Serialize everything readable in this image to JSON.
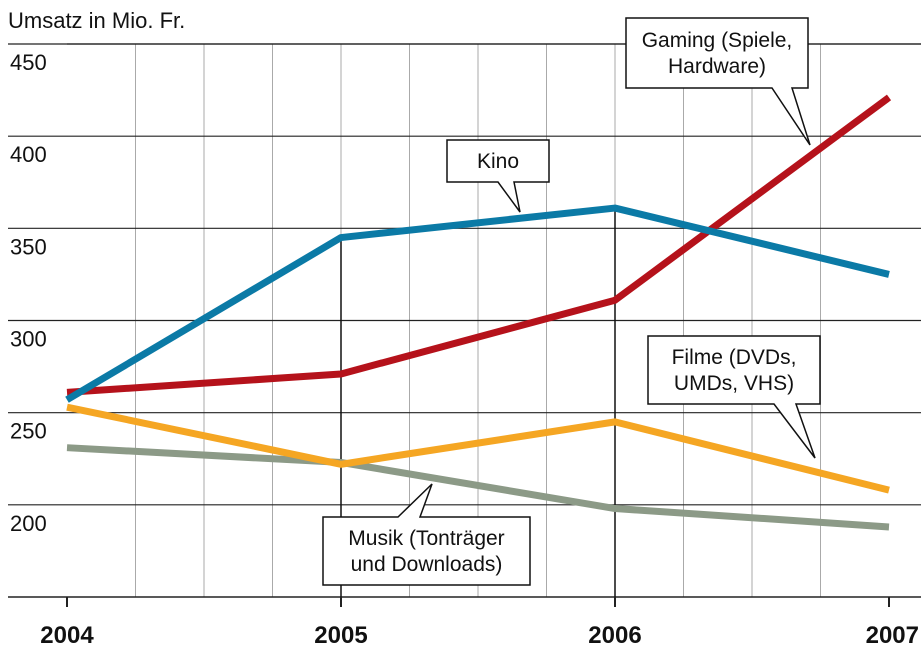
{
  "chart_data": {
    "type": "line",
    "y_axis_label": "Umsatz in Mio. Fr.",
    "categories": [
      "2004",
      "2005",
      "2006",
      "2007"
    ],
    "ylim": [
      150,
      450
    ],
    "yticks": [
      200,
      250,
      300,
      350,
      400,
      450
    ],
    "grid": true,
    "series": [
      {
        "name": "Kino",
        "color": "#0b7aa6",
        "values": [
          257,
          345,
          361,
          325
        ]
      },
      {
        "name": "Gaming (Spiele,\nHardware)",
        "color": "#b5121b",
        "values": [
          261,
          271,
          311,
          421
        ]
      },
      {
        "name": "Filme (DVDs,\nUMDs, VHS)",
        "color": "#f5a623",
        "values": [
          253,
          222,
          245,
          208
        ]
      },
      {
        "name": "Musik (Tonträger\nund Downloads)",
        "color": "#8c9a87",
        "values": [
          231,
          223,
          198,
          188
        ]
      }
    ]
  }
}
